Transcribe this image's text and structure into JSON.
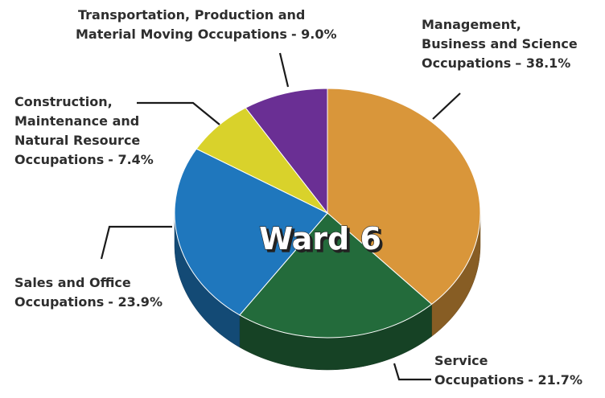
{
  "chart_data": {
    "type": "pie",
    "title": "Ward 6",
    "categories": [
      "Management, Business and Science Occupations",
      "Service Occupations",
      "Sales and Office Occupations",
      "Construction, Maintenance and Natural Resource Occupations",
      "Transportation, Production and Material Moving Occupations"
    ],
    "values": [
      38.1,
      21.7,
      23.9,
      7.4,
      9.0
    ],
    "value_labels": [
      "– 38.1%",
      "- 21.7%",
      "- 23.9%",
      "- 7.4%",
      "- 9.0%"
    ],
    "colors": [
      "#d9963a",
      "#236b3b",
      "#1f77bd",
      "#d9d22b",
      "#6a2f94"
    ]
  }
}
